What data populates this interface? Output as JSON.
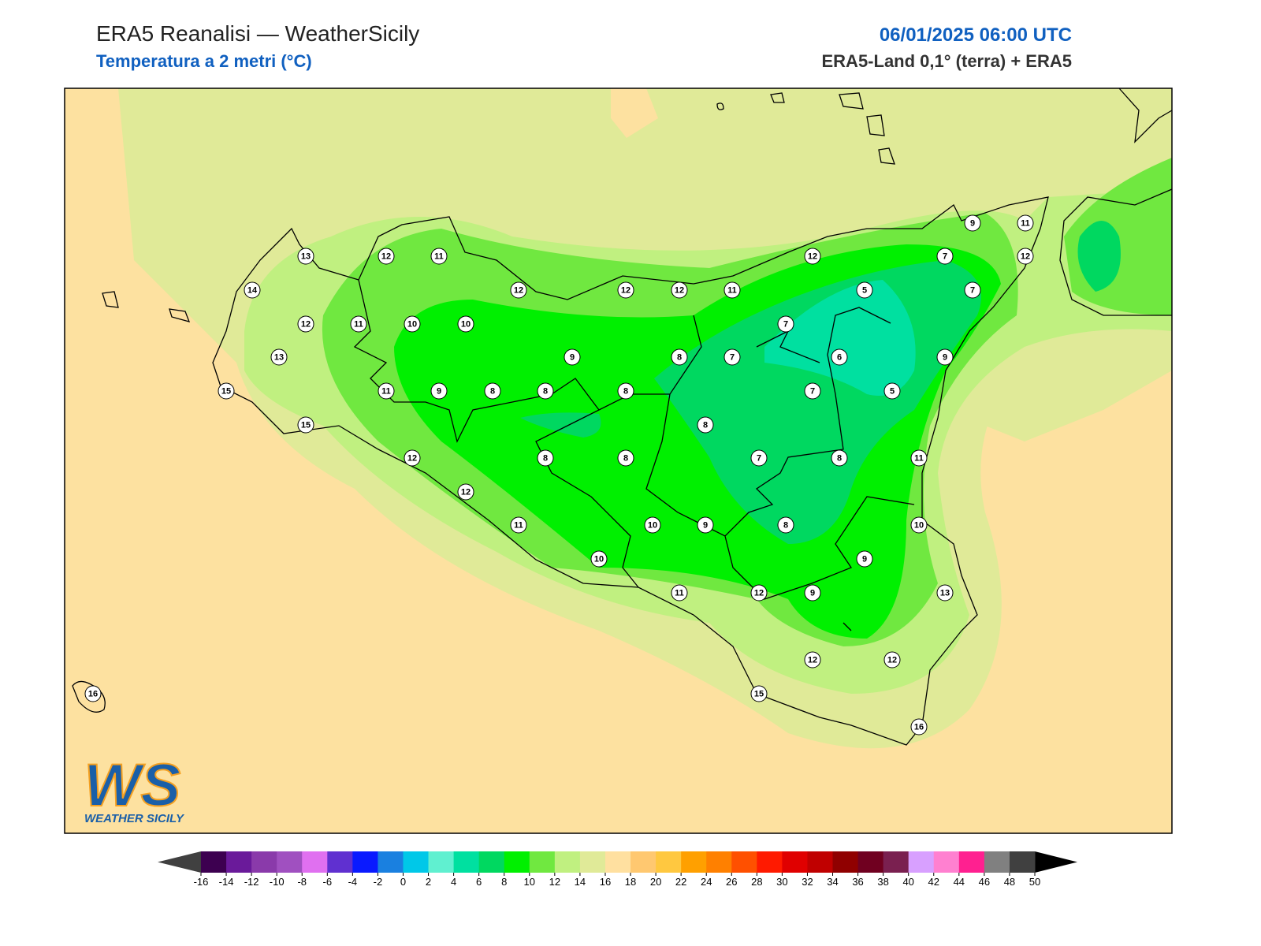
{
  "header": {
    "title": "ERA5 Reanalisi — WeatherSicily",
    "subtitle": "Temperatura a 2 metri (°C)",
    "datetime": "06/01/2025 06:00 UTC",
    "source": "ERA5-Land 0,1° (terra) + ERA5"
  },
  "stations": [
    13,
    12,
    11,
    12,
    12,
    12,
    11,
    12,
    9,
    11,
    12,
    7,
    5,
    7,
    14,
    12,
    11,
    10,
    10,
    7,
    13,
    9,
    8,
    7,
    6,
    9,
    15,
    11,
    9,
    8,
    8,
    8,
    7,
    5,
    15,
    8,
    12,
    8,
    8,
    7,
    8,
    11,
    12,
    11,
    10,
    9,
    8,
    10,
    10,
    9,
    11,
    12,
    9,
    13,
    12,
    12,
    15,
    16,
    16
  ],
  "colorbar": {
    "ticks": [
      -16,
      -14,
      -12,
      -10,
      -8,
      -6,
      -4,
      -2,
      0,
      2,
      4,
      6,
      8,
      10,
      12,
      14,
      16,
      18,
      20,
      22,
      24,
      26,
      28,
      30,
      32,
      34,
      36,
      38,
      40,
      42,
      44,
      46,
      48,
      50
    ],
    "colors": [
      "#3d0050",
      "#6a1a9a",
      "#8a3aaa",
      "#a050c0",
      "#e070f0",
      "#6030d0",
      "#0a1aff",
      "#1a80e0",
      "#00c8e8",
      "#60f0d0",
      "#00e0a0",
      "#00d860",
      "#00f000",
      "#70e840",
      "#c0f080",
      "#e0ea98",
      "#ffe0a0",
      "#ffc870",
      "#ffc840",
      "#ffa000",
      "#ff8000",
      "#ff5000",
      "#ff1a00",
      "#e00000",
      "#c00000",
      "#900000",
      "#700020",
      "#7a2050",
      "#d8a0ff",
      "#ff80d0",
      "#ff2090",
      "#808080",
      "#404040"
    ],
    "under_color": "#404040",
    "over_color": "#000000"
  },
  "logo": {
    "mark": "WS",
    "text": "WEATHER SICILY"
  }
}
